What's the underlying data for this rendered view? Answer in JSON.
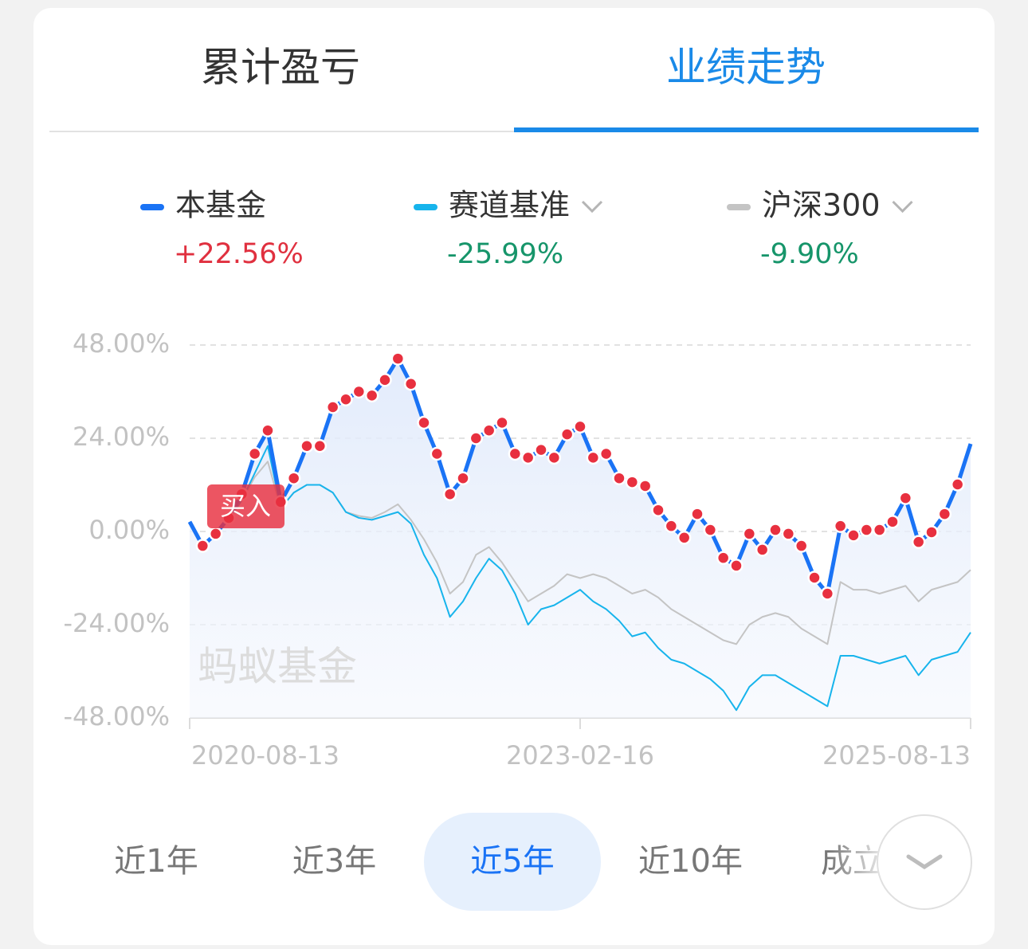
{
  "tabs": {
    "items": [
      "累计盈亏",
      "业绩走势"
    ],
    "active": 1
  },
  "chart_data": {
    "type": "line",
    "categories": [
      "2020-08-13",
      null,
      null,
      null,
      null,
      null,
      null,
      null,
      null,
      null,
      null,
      null,
      null,
      null,
      null,
      null,
      null,
      null,
      null,
      null,
      null,
      null,
      null,
      null,
      null,
      null,
      null,
      null,
      null,
      null,
      "2023-02-16",
      null,
      null,
      null,
      null,
      null,
      null,
      null,
      null,
      null,
      null,
      null,
      null,
      null,
      null,
      null,
      null,
      null,
      null,
      null,
      null,
      null,
      null,
      null,
      null,
      null,
      null,
      null,
      null,
      null,
      "2025-08-13"
    ],
    "series": [
      {
        "name": "本基金",
        "color": "#1a73f5",
        "return": 22.56,
        "return_label": "+22.56%",
        "values": [
          2.5,
          -3.7,
          -0.6,
          3.5,
          9.6,
          20,
          26,
          7.6,
          13.7,
          22,
          22,
          32,
          34,
          36,
          35,
          39,
          44.5,
          38,
          28,
          20,
          9.6,
          13.7,
          24,
          26,
          28,
          20,
          19,
          21,
          19,
          25,
          27,
          19,
          20,
          13.7,
          12.7,
          11.7,
          5.5,
          1.4,
          -1.6,
          4.5,
          0.4,
          -6.8,
          -8.8,
          -0.6,
          -4.7,
          0.4,
          -0.6,
          -3.7,
          -11.9,
          -16,
          1.4,
          -1,
          0.4,
          0.4,
          2.5,
          8.6,
          -2.7,
          -0.2,
          4.5,
          12.1,
          22.56
        ]
      },
      {
        "name": "赛道基准",
        "color": "#17b4ec",
        "return": -25.99,
        "return_label": "-25.99%",
        "values": [
          2.5,
          -3.5,
          -0.5,
          3,
          8,
          15,
          22,
          6,
          10,
          12,
          12,
          10,
          5,
          3.5,
          3,
          4,
          5,
          2,
          -6,
          -12,
          -22,
          -18,
          -12,
          -7,
          -10,
          -16,
          -24,
          -20,
          -19,
          -17,
          -15,
          -18,
          -20,
          -23,
          -27,
          -26,
          -30,
          -33,
          -34,
          -36,
          -38,
          -41,
          -46,
          -40,
          -37,
          -37,
          -39,
          -41,
          -43,
          -45,
          -32,
          -32,
          -33,
          -34,
          -33,
          -32,
          -37,
          -33,
          -32,
          -31,
          -25.99
        ]
      },
      {
        "name": "沪深300",
        "color": "#c4c4c4",
        "return": -9.9,
        "return_label": "-9.90%",
        "values": [
          2.5,
          -3.5,
          -0.5,
          3,
          8,
          14,
          18,
          6,
          10,
          12,
          12,
          10,
          5,
          4,
          3.5,
          5,
          7,
          3,
          -2,
          -8,
          -16,
          -13,
          -6,
          -4,
          -8,
          -13,
          -18,
          -16,
          -14,
          -11,
          -12,
          -11,
          -12,
          -14,
          -16,
          -15,
          -17,
          -20,
          -22,
          -24,
          -26,
          -28,
          -29,
          -24,
          -22,
          -21,
          -22,
          -25,
          -27,
          -29,
          -13,
          -15,
          -15,
          -16,
          -15,
          -14,
          -18,
          -15,
          -14,
          -13,
          -9.9
        ]
      }
    ],
    "ylim": [
      -48,
      48
    ],
    "yticks": [
      {
        "value": 48,
        "label": "48.00%"
      },
      {
        "value": 24,
        "label": "24.00%"
      },
      {
        "value": 0,
        "label": "0.00%"
      },
      {
        "value": -24,
        "label": "-24.00%"
      },
      {
        "value": -48,
        "label": "-48.00%"
      }
    ],
    "grid": true,
    "annotations": [
      {
        "text": "买入"
      }
    ],
    "watermark": "蚂蚁基金"
  },
  "periods": {
    "items": [
      "近1年",
      "近3年",
      "近5年",
      "近10年",
      "成立来"
    ],
    "active": 2
  }
}
